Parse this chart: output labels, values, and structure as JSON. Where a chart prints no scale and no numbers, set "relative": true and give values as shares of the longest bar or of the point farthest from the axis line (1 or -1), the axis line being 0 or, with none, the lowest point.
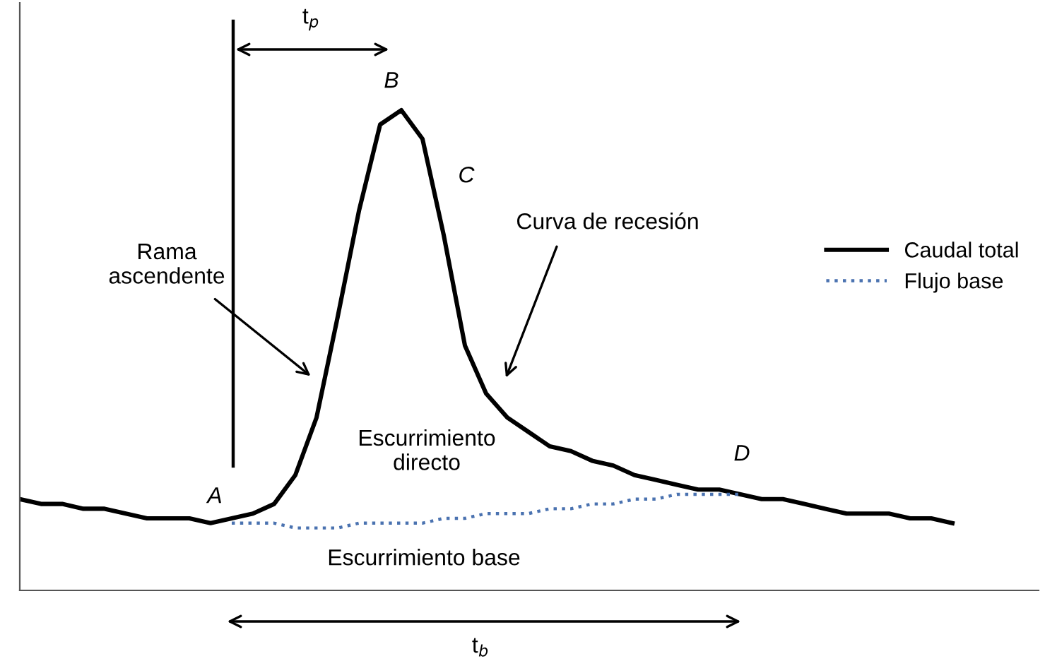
{
  "chart_data": {
    "type": "line",
    "relative": true,
    "categories": [
      null,
      null,
      null,
      null,
      null,
      null,
      null,
      null,
      null,
      null,
      null,
      null,
      null,
      null,
      null,
      null,
      null,
      null,
      null,
      null,
      null,
      null,
      null,
      null,
      null,
      null,
      null,
      null,
      null,
      null,
      null,
      null,
      null,
      null,
      null,
      null,
      null,
      null,
      null,
      null,
      null,
      null,
      null,
      null,
      null
    ],
    "series": [
      {
        "name": "Caudal total",
        "color": "#000000",
        "line_style": "solid",
        "values": [
          0.19,
          0.18,
          0.18,
          0.17,
          0.17,
          0.16,
          0.15,
          0.15,
          0.15,
          0.14,
          0.15,
          0.16,
          0.18,
          0.24,
          0.36,
          0.57,
          0.79,
          0.97,
          1,
          0.94,
          0.74,
          0.51,
          0.41,
          0.36,
          0.33,
          0.3,
          0.29,
          0.27,
          0.26,
          0.24,
          0.23,
          0.22,
          0.21,
          0.21,
          0.2,
          0.19,
          0.19,
          0.18,
          0.17,
          0.16,
          0.16,
          0.16,
          0.15,
          0.15,
          0.14
        ]
      },
      {
        "name": "Flujo base",
        "color": "#4a72b0",
        "line_style": "dotted",
        "values": [
          null,
          null,
          null,
          null,
          null,
          null,
          null,
          null,
          null,
          null,
          0.14,
          0.14,
          0.14,
          0.13,
          0.13,
          0.13,
          0.14,
          0.14,
          0.14,
          0.14,
          0.15,
          0.15,
          0.16,
          0.16,
          0.16,
          0.17,
          0.17,
          0.18,
          0.18,
          0.19,
          0.19,
          0.2,
          0.2,
          0.2,
          0.2,
          null,
          null,
          null,
          null,
          null,
          null,
          null,
          null,
          null,
          null
        ]
      }
    ],
    "annotations": [
      "t$_{p}$",
      "B",
      "C",
      "Rama\nascendente",
      "Curva de recesión",
      "Escurrimiento\ndirecto",
      "A",
      "D",
      "Escurrimiento base",
      "t$_{b}$"
    ],
    "legend": "right",
    "grid": false
  }
}
